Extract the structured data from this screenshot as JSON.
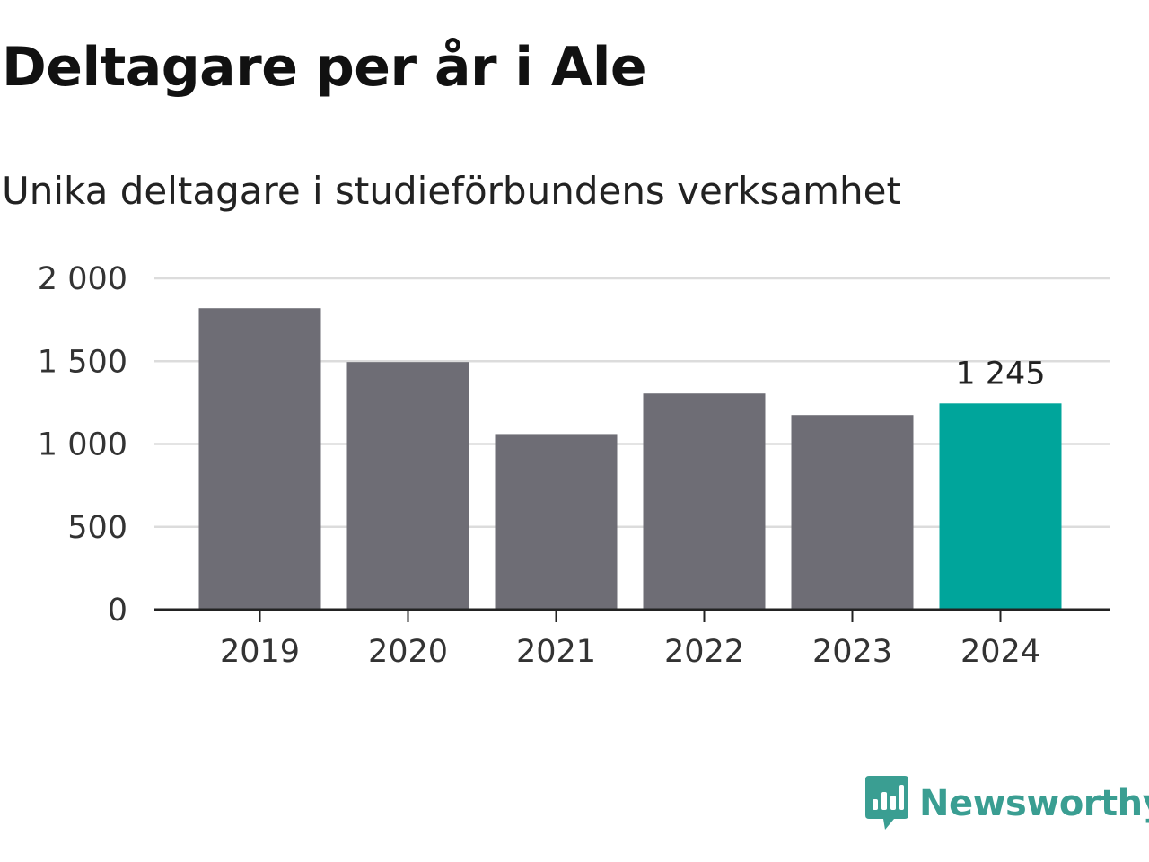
{
  "title": "Deltagare per år i Ale",
  "subtitle": "Unika deltagare i studieförbundens verksamhet",
  "brand": {
    "name": "Newsworthy",
    "color": "#3a9e92",
    "icon": "newsworthy-logo-icon"
  },
  "chart_data": {
    "type": "bar",
    "title": "Deltagare per år i Ale",
    "subtitle": "Unika deltagare i studieförbundens verksamhet",
    "categories": [
      "2019",
      "2020",
      "2021",
      "2022",
      "2023",
      "2024"
    ],
    "values": [
      1820,
      1495,
      1060,
      1305,
      1175,
      1245
    ],
    "colors": [
      "#6e6d75",
      "#6e6d75",
      "#6e6d75",
      "#6e6d75",
      "#6e6d75",
      "#00a59b"
    ],
    "highlight_label": "1 245",
    "highlight_index": 5,
    "ylim": [
      0,
      2000
    ],
    "yticks": [
      0,
      500,
      1000,
      1500,
      2000
    ],
    "ytick_labels": [
      "0",
      "500",
      "1 000",
      "1 500",
      "2 000"
    ],
    "xlabel": "",
    "ylabel": "",
    "grid": true,
    "legend": "none"
  }
}
